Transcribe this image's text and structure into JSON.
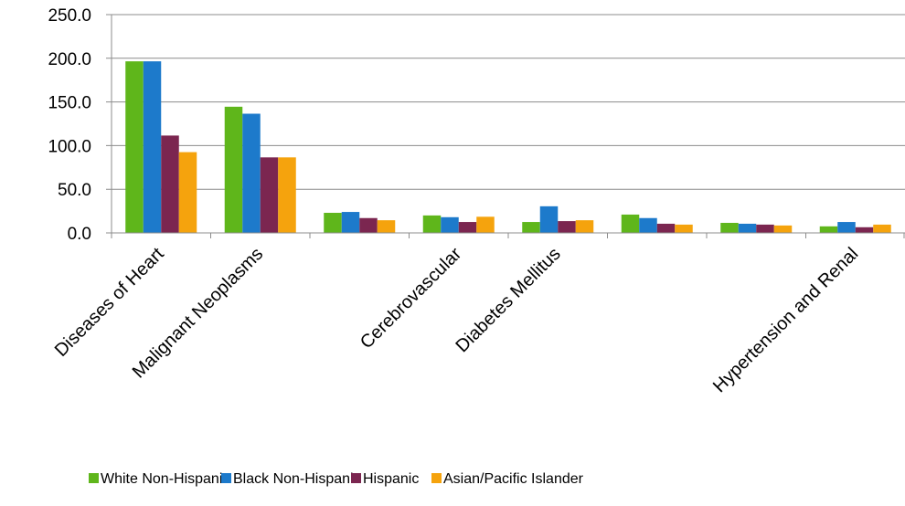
{
  "chart_data": {
    "type": "bar",
    "categories": [
      "Diseases of Heart",
      "Malignant Neoplasms",
      "",
      "Cerebrovascular",
      "Diabetes Mellitus",
      "",
      "",
      "Hypertension and Renal"
    ],
    "series": [
      {
        "name": "White Non-Hispanic",
        "color": "#5fb61b",
        "values": [
          196.5,
          144.5,
          23.0,
          20.0,
          12.5,
          21.0,
          11.5,
          7.5
        ]
      },
      {
        "name": "Black Non-Hispanic",
        "color": "#1d7acb",
        "values": [
          196.5,
          136.5,
          24.0,
          18.0,
          30.5,
          17.0,
          10.5,
          12.5
        ]
      },
      {
        "name": "Hispanic",
        "color": "#7b2650",
        "values": [
          111.5,
          86.5,
          17.0,
          12.5,
          13.5,
          10.5,
          9.5,
          6.5
        ]
      },
      {
        "name": "Asian/Pacific Islander",
        "color": "#f5a30d",
        "values": [
          92.5,
          86.5,
          14.5,
          18.5,
          14.5,
          9.5,
          8.5,
          9.5
        ]
      }
    ],
    "y_ticks": [
      "0.0",
      "50.0",
      "100.0",
      "150.0",
      "200.0",
      "250.0"
    ],
    "ylim": [
      0,
      250
    ],
    "grid": true,
    "legend_position": "bottom"
  }
}
